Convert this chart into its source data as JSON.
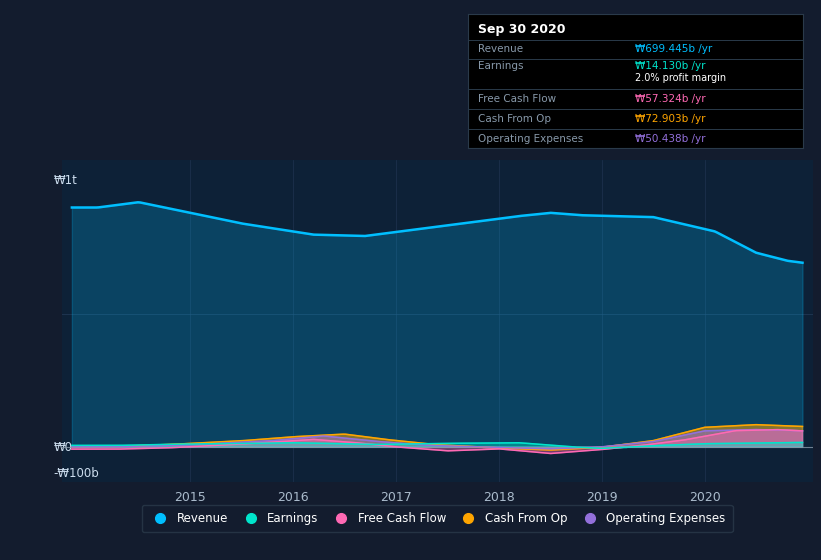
{
  "bg_color": "#131c2e",
  "plot_bg_color": "#0d2137",
  "ylabel_w0": "₩0",
  "ylabel_w1t": "₩1t",
  "ylabel_wn100b": "-₩100b",
  "ylim": [
    -130,
    1080
  ],
  "xlim": [
    2013.75,
    2021.05
  ],
  "revenue_color": "#00bfff",
  "earnings_color": "#00e5cc",
  "fcf_color": "#ff69b4",
  "cashfromop_color": "#ffa500",
  "opex_color": "#9370db",
  "legend_items": [
    "Revenue",
    "Earnings",
    "Free Cash Flow",
    "Cash From Op",
    "Operating Expenses"
  ],
  "legend_colors": [
    "#00bfff",
    "#00e5cc",
    "#ff69b4",
    "#ffa500",
    "#9370db"
  ],
  "tooltip": {
    "title": "Sep 30 2020",
    "revenue_label": "Revenue",
    "revenue_value": "₩699.445b /yr",
    "revenue_color": "#00bfff",
    "earnings_label": "Earnings",
    "earnings_value": "₩14.130b /yr",
    "earnings_color": "#00e5cc",
    "profit_margin": "2.0% profit margin",
    "fcf_label": "Free Cash Flow",
    "fcf_value": "₩57.324b /yr",
    "fcf_color": "#ff69b4",
    "cashop_label": "Cash From Op",
    "cashop_value": "₩72.903b /yr",
    "cashop_color": "#ffa500",
    "opex_label": "Operating Expenses",
    "opex_value": "₩50.438b /yr",
    "opex_color": "#9370db"
  }
}
